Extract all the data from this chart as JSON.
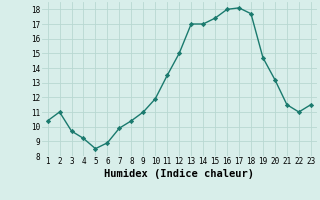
{
  "x": [
    1,
    2,
    3,
    4,
    5,
    6,
    7,
    8,
    9,
    10,
    11,
    12,
    13,
    14,
    15,
    16,
    17,
    18,
    19,
    20,
    21,
    22,
    23
  ],
  "y": [
    10.4,
    11.0,
    9.7,
    9.2,
    8.5,
    8.9,
    9.9,
    10.4,
    11.0,
    11.9,
    13.5,
    15.0,
    17.0,
    17.0,
    17.4,
    18.0,
    18.1,
    17.7,
    14.7,
    13.2,
    11.5,
    11.0,
    11.5
  ],
  "line_color": "#1a7a6e",
  "marker": "D",
  "marker_size": 2.2,
  "line_width": 1.0,
  "xlabel": "Humidex (Indice chaleur)",
  "ylim": [
    8,
    18.5
  ],
  "xlim": [
    0.5,
    23.5
  ],
  "yticks": [
    8,
    9,
    10,
    11,
    12,
    13,
    14,
    15,
    16,
    17,
    18
  ],
  "xticks": [
    1,
    2,
    3,
    4,
    5,
    6,
    7,
    8,
    9,
    10,
    11,
    12,
    13,
    14,
    15,
    16,
    17,
    18,
    19,
    20,
    21,
    22,
    23
  ],
  "bg_color": "#d8eeea",
  "grid_color": "#b8d8d2",
  "tick_fontsize": 5.5,
  "xlabel_fontsize": 7.5
}
